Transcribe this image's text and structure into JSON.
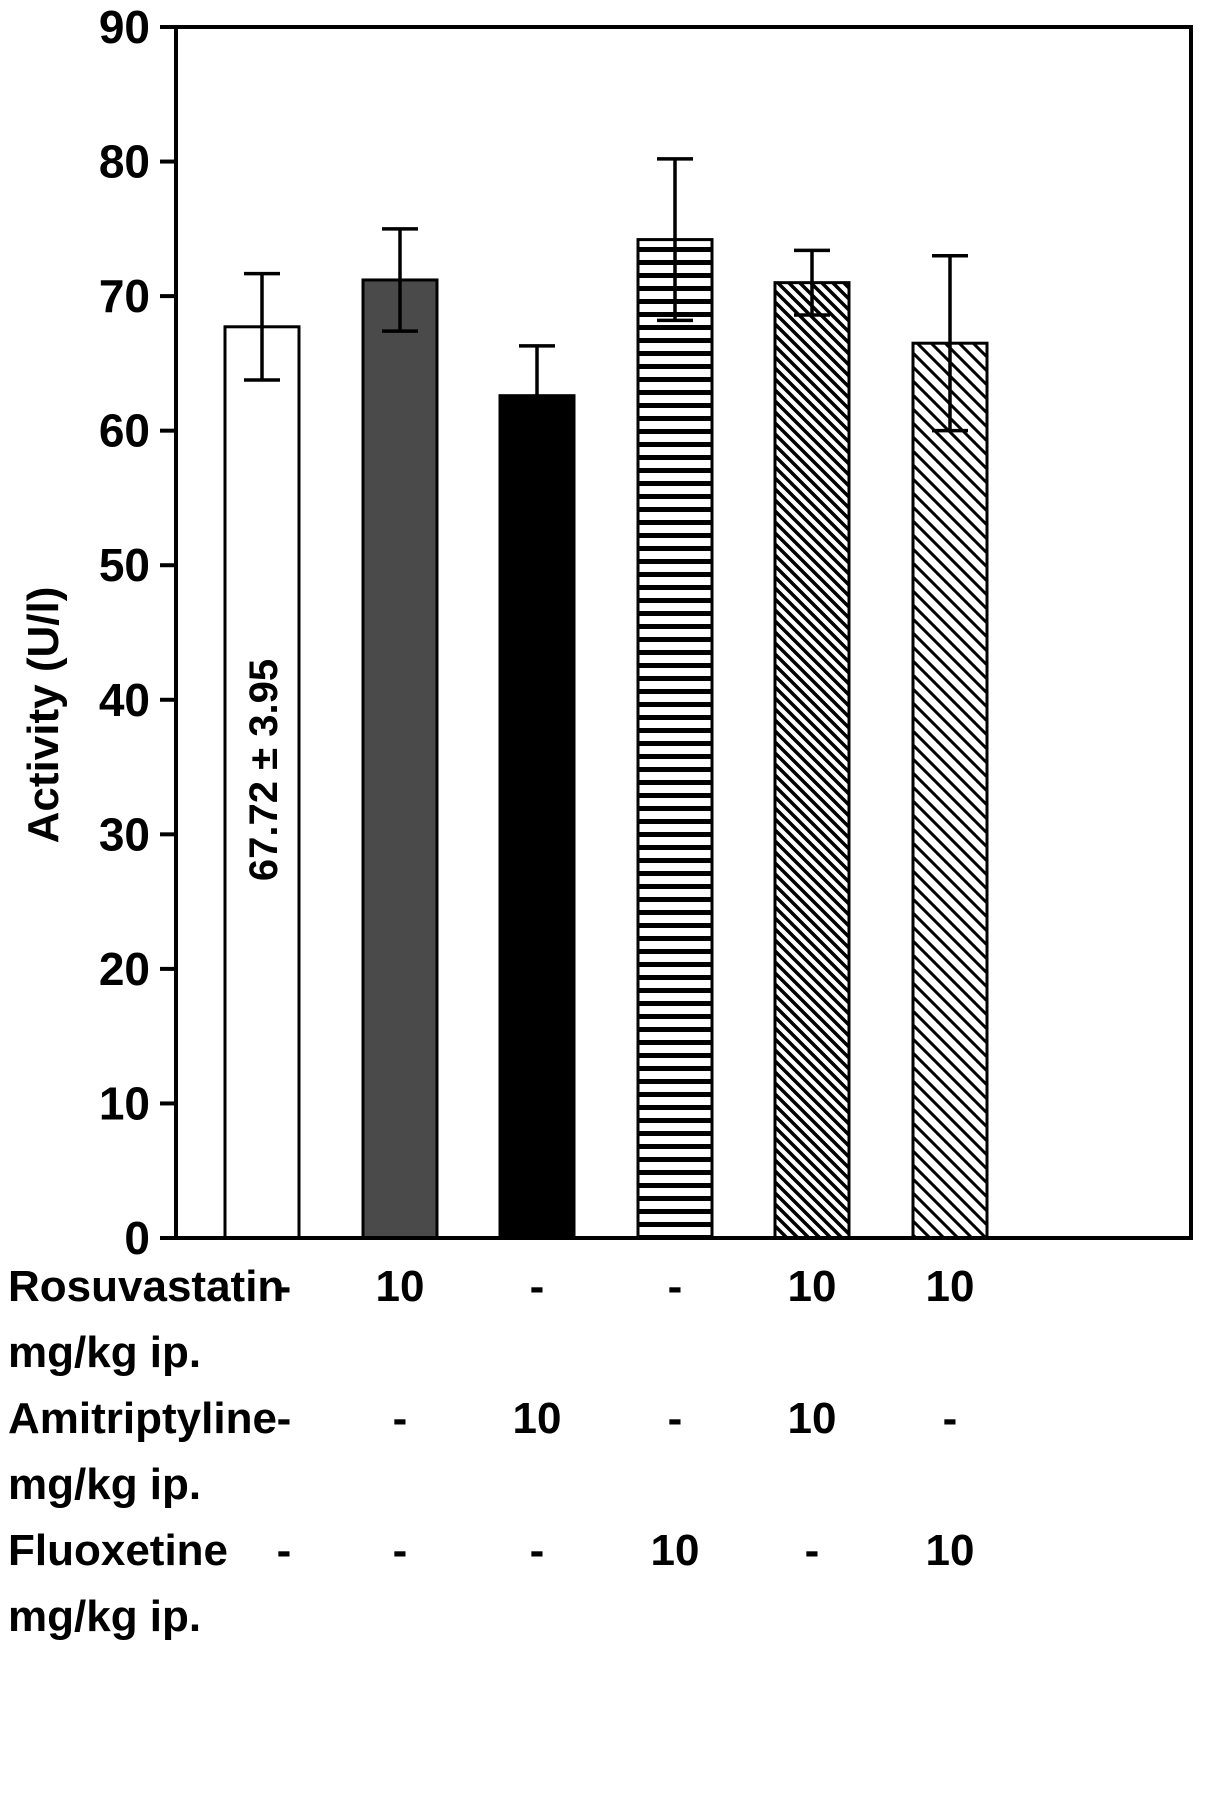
{
  "figure": {
    "background": "#ffffff"
  },
  "chart_data": {
    "type": "bar",
    "title": "",
    "xlabel": "",
    "ylabel": "Activity (U/l)",
    "ylim": [
      0,
      90
    ],
    "yticks": [
      0,
      10,
      20,
      30,
      40,
      50,
      60,
      70,
      80,
      90
    ],
    "grid": false,
    "legend": "none",
    "error_bars": true,
    "bars": [
      {
        "value": 67.72,
        "error": 3.95,
        "style": "open",
        "inside_label": "67.72 ± 3.95"
      },
      {
        "value": 71.2,
        "error": 3.8,
        "style": "dark-gray",
        "inside_label": ""
      },
      {
        "value": 62.6,
        "error": 3.7,
        "style": "solid-black",
        "inside_label": ""
      },
      {
        "value": 74.2,
        "error": 6.0,
        "style": "horizontal-stripes",
        "inside_label": ""
      },
      {
        "value": 71.0,
        "error": 2.4,
        "style": "diagonal-hatch-dense",
        "inside_label": ""
      },
      {
        "value": 66.5,
        "error": 6.5,
        "style": "diagonal-hatch-light",
        "inside_label": ""
      }
    ],
    "dose_table": {
      "rows": [
        {
          "label": "Rosuvastatin",
          "unit": "mg/kg ip.",
          "values": [
            "-",
            "10",
            "-",
            "-",
            "10",
            "10"
          ]
        },
        {
          "label": "Amitriptyline",
          "unit": "mg/kg ip.",
          "values": [
            "-",
            "-",
            "10",
            "-",
            "10",
            "-"
          ]
        },
        {
          "label": "Fluoxetine",
          "unit": "mg/kg ip.",
          "values": [
            "-",
            "-",
            "-",
            "10",
            "-",
            "10"
          ]
        }
      ]
    },
    "colors": {
      "dark_gray": "#4a4a4a",
      "black": "#000000",
      "white": "#ffffff"
    }
  }
}
